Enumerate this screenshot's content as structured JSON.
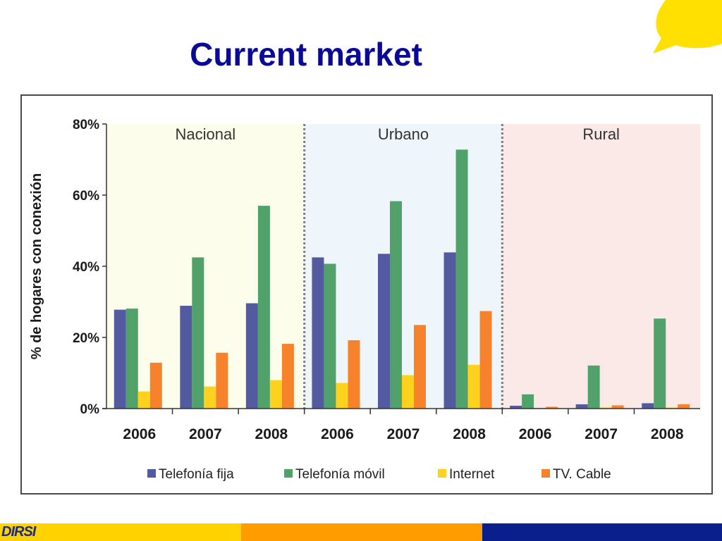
{
  "slide": {
    "title": "Current market",
    "logo_text": "DIRSI"
  },
  "colors": {
    "title": "#0a0a96",
    "bubble": "#ffe000",
    "footer": [
      "#ffd200",
      "#ff9c00",
      "#0a1e8c"
    ]
  },
  "chart_data": {
    "type": "bar",
    "ylabel": "% de hogares con conexión",
    "ylim": [
      0,
      80
    ],
    "yticks": [
      "0%",
      "20%",
      "40%",
      "60%",
      "80%"
    ],
    "groups": [
      {
        "name": "Nacional",
        "bg": "#fdfdec",
        "categories": [
          "2006",
          "2007",
          "2008"
        ]
      },
      {
        "name": "Urbano",
        "bg": "#eef5fb",
        "categories": [
          "2006",
          "2007",
          "2008"
        ]
      },
      {
        "name": "Rural",
        "bg": "#fbe9e7",
        "categories": [
          "2006",
          "2007",
          "2008"
        ]
      }
    ],
    "series": [
      {
        "name": "Telefonía fija",
        "color": "#545aa0",
        "values": [
          27.8,
          28.9,
          29.6,
          42.5,
          43.5,
          43.9,
          0.8,
          1.2,
          1.5
        ]
      },
      {
        "name": "Telefonía móvil",
        "color": "#50a26a",
        "values": [
          28.1,
          42.5,
          57.0,
          40.7,
          58.3,
          72.8,
          4.0,
          12.1,
          25.3
        ]
      },
      {
        "name": "Internet",
        "color": "#fcd21e",
        "values": [
          4.8,
          6.2,
          8.0,
          7.2,
          9.4,
          12.3,
          0.2,
          0.3,
          0.3
        ]
      },
      {
        "name": "TV. Cable",
        "color": "#f6822c",
        "values": [
          12.9,
          15.7,
          18.2,
          19.2,
          23.5,
          27.4,
          0.5,
          0.9,
          1.2
        ]
      }
    ],
    "legend_position": "bottom",
    "grid": false
  }
}
